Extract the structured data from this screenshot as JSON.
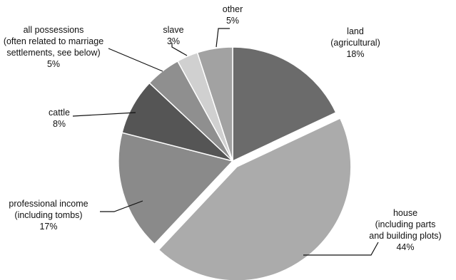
{
  "chart_data": {
    "type": "pie",
    "title": "",
    "slices": [
      {
        "name": "land",
        "label_lines": [
          "land",
          "(agricultural)"
        ],
        "value": 18,
        "pct_label": "18%",
        "color": "#6b6b6b",
        "exploded": false
      },
      {
        "name": "house",
        "label_lines": [
          "house",
          "(including parts",
          "and building plots)"
        ],
        "value": 44,
        "pct_label": "44%",
        "color": "#ababab",
        "exploded": true
      },
      {
        "name": "professional income",
        "label_lines": [
          "professional income",
          "(including tombs)"
        ],
        "value": 17,
        "pct_label": "17%",
        "color": "#8a8a8a",
        "exploded": false
      },
      {
        "name": "cattle",
        "label_lines": [
          "cattle"
        ],
        "value": 8,
        "pct_label": "8%",
        "color": "#555555",
        "exploded": false
      },
      {
        "name": "all possessions",
        "label_lines": [
          "all possessions",
          "(often related to marriage",
          "settlements, see below)"
        ],
        "value": 5,
        "pct_label": "5%",
        "color": "#8f8f8f",
        "exploded": false
      },
      {
        "name": "slave",
        "label_lines": [
          "slave"
        ],
        "value": 3,
        "pct_label": "3%",
        "color": "#d0d0d0",
        "exploded": false
      },
      {
        "name": "other",
        "label_lines": [
          "other"
        ],
        "value": 5,
        "pct_label": "5%",
        "color": "#a2a2a2",
        "exploded": false
      }
    ]
  }
}
